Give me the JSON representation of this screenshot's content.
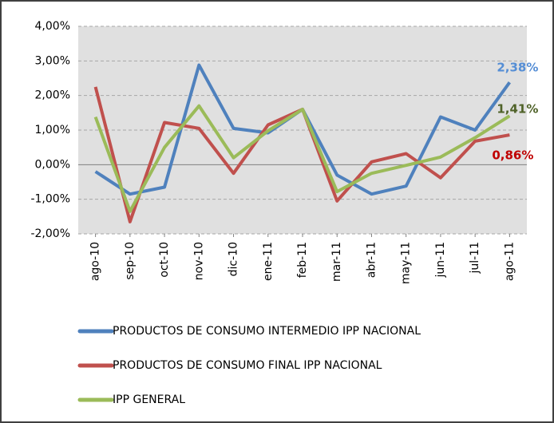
{
  "chart_data": {
    "type": "line",
    "categories": [
      "ago-10",
      "sep-10",
      "oct-10",
      "nov-10",
      "dic-10",
      "ene-11",
      "feb-11",
      "mar-11",
      "abr-11",
      "may-11",
      "jun-11",
      "jul-11",
      "ago-11"
    ],
    "series": [
      {
        "name": "PRODUCTOS DE CONSUMO INTERMEDIO IPP NACIONAL",
        "color": "#4f81bd",
        "values": [
          -0.2,
          -0.85,
          -0.65,
          2.88,
          1.05,
          0.92,
          1.6,
          -0.3,
          -0.85,
          -0.62,
          1.38,
          1.0,
          2.38
        ],
        "value_labels": [
          null,
          null,
          null,
          null,
          null,
          null,
          null,
          null,
          null,
          null,
          null,
          null,
          "2,38%"
        ],
        "label_color": "#558ed5"
      },
      {
        "name": "PRODUCTOS DE CONSUMO FINAL IPP NACIONAL",
        "color": "#c0504d",
        "values": [
          2.25,
          -1.65,
          1.22,
          1.05,
          -0.25,
          1.15,
          1.6,
          -1.05,
          0.08,
          0.32,
          -0.38,
          0.68,
          0.86
        ],
        "value_labels": [
          null,
          null,
          null,
          null,
          null,
          null,
          null,
          null,
          null,
          null,
          null,
          null,
          "0,86%"
        ],
        "label_color": "#c00000"
      },
      {
        "name": "IPP GENERAL",
        "color": "#9bbb59",
        "values": [
          1.38,
          -1.35,
          0.5,
          1.7,
          0.2,
          0.98,
          1.6,
          -0.78,
          -0.25,
          -0.02,
          0.22,
          0.78,
          1.41
        ],
        "value_labels": [
          null,
          null,
          null,
          null,
          null,
          null,
          null,
          null,
          null,
          null,
          null,
          null,
          "1,41%"
        ],
        "label_color": "#4f6228"
      }
    ],
    "ylim": [
      -2,
      4
    ],
    "yticks": [
      {
        "value": -2,
        "label": "-2,00%"
      },
      {
        "value": -1,
        "label": "-1,00%"
      },
      {
        "value": 0,
        "label": "0,00%"
      },
      {
        "value": 1,
        "label": "1,00%"
      },
      {
        "value": 2,
        "label": "2,00%"
      },
      {
        "value": 3,
        "label": "3,00%"
      },
      {
        "value": 4,
        "label": "4,00%"
      }
    ],
    "grid": true
  }
}
